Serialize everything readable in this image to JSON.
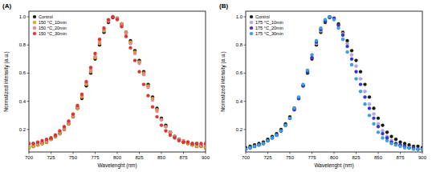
{
  "chart_data": [
    {
      "type": "scatter",
      "title": "(A)",
      "x_label": "Wavelenght (nm)",
      "y_label": "Normalized intensity (a.u.)",
      "x": [
        700,
        705,
        710,
        715,
        720,
        725,
        730,
        735,
        740,
        745,
        750,
        755,
        760,
        765,
        770,
        775,
        780,
        785,
        790,
        795,
        800,
        805,
        810,
        815,
        820,
        825,
        830,
        835,
        840,
        845,
        850,
        855,
        860,
        865,
        870,
        875,
        880,
        885,
        890,
        895,
        900
      ],
      "series": [
        {
          "name": "Control",
          "color": "#1a1a0a",
          "values": [
            0.07,
            0.08,
            0.09,
            0.1,
            0.11,
            0.13,
            0.15,
            0.17,
            0.2,
            0.24,
            0.29,
            0.35,
            0.42,
            0.51,
            0.6,
            0.7,
            0.8,
            0.89,
            0.96,
            0.995,
            0.99,
            0.95,
            0.89,
            0.83,
            0.76,
            0.69,
            0.61,
            0.52,
            0.43,
            0.35,
            0.28,
            0.23,
            0.18,
            0.15,
            0.13,
            0.11,
            0.1,
            0.09,
            0.08,
            0.08,
            0.07
          ]
        },
        {
          "name": "150 °C_10min",
          "color": "#f5a623",
          "values": [
            0.07,
            0.08,
            0.09,
            0.1,
            0.11,
            0.13,
            0.15,
            0.17,
            0.2,
            0.24,
            0.29,
            0.35,
            0.43,
            0.52,
            0.61,
            0.71,
            0.81,
            0.9,
            0.97,
            1.0,
            0.99,
            0.95,
            0.89,
            0.82,
            0.75,
            0.68,
            0.6,
            0.51,
            0.42,
            0.34,
            0.27,
            0.22,
            0.18,
            0.15,
            0.13,
            0.11,
            0.1,
            0.09,
            0.08,
            0.08,
            0.07
          ]
        },
        {
          "name": "150 °C_20min",
          "color": "#f08a8a",
          "values": [
            0.09,
            0.1,
            0.1,
            0.11,
            0.12,
            0.14,
            0.16,
            0.18,
            0.21,
            0.25,
            0.3,
            0.36,
            0.44,
            0.53,
            0.62,
            0.72,
            0.82,
            0.91,
            0.97,
            1.0,
            0.99,
            0.94,
            0.88,
            0.81,
            0.74,
            0.67,
            0.59,
            0.5,
            0.41,
            0.33,
            0.27,
            0.22,
            0.18,
            0.15,
            0.13,
            0.12,
            0.11,
            0.1,
            0.1,
            0.09,
            0.09
          ]
        },
        {
          "name": "150 °C_30min",
          "color": "#e8322e",
          "values": [
            0.1,
            0.1,
            0.11,
            0.12,
            0.13,
            0.14,
            0.16,
            0.19,
            0.22,
            0.26,
            0.31,
            0.37,
            0.45,
            0.54,
            0.64,
            0.74,
            0.84,
            0.92,
            0.98,
            1.0,
            0.98,
            0.93,
            0.86,
            0.78,
            0.69,
            0.61,
            0.52,
            0.44,
            0.36,
            0.29,
            0.23,
            0.19,
            0.16,
            0.14,
            0.12,
            0.11,
            0.11,
            0.1,
            0.1,
            0.1,
            0.1
          ]
        }
      ],
      "xlim": [
        700,
        900
      ],
      "xticks": [
        700,
        725,
        750,
        775,
        800,
        825,
        850,
        875,
        900
      ],
      "ylim": [
        0.04,
        1.04
      ],
      "yticks": [
        0.2,
        0.4,
        0.6,
        0.8,
        {
          "value": 1,
          "label": "1.0"
        }
      ],
      "legend": "upper left",
      "marker": "circle",
      "grid": false
    },
    {
      "type": "scatter",
      "title": "(B)",
      "x_label": "Wavelenght (nm)",
      "y_label": "Normalized intensity (a.u.)",
      "x": [
        700,
        705,
        710,
        715,
        720,
        725,
        730,
        735,
        740,
        745,
        750,
        755,
        760,
        765,
        770,
        775,
        780,
        785,
        790,
        795,
        800,
        805,
        810,
        815,
        820,
        825,
        830,
        835,
        840,
        845,
        850,
        855,
        860,
        865,
        870,
        875,
        880,
        885,
        890,
        895,
        900
      ],
      "series": [
        {
          "name": "Control",
          "color": "#1a1a0a",
          "values": [
            0.07,
            0.08,
            0.09,
            0.1,
            0.11,
            0.13,
            0.15,
            0.17,
            0.2,
            0.24,
            0.29,
            0.35,
            0.42,
            0.51,
            0.6,
            0.7,
            0.8,
            0.89,
            0.96,
            0.995,
            0.99,
            0.95,
            0.89,
            0.83,
            0.76,
            0.69,
            0.61,
            0.52,
            0.43,
            0.35,
            0.28,
            0.23,
            0.18,
            0.15,
            0.13,
            0.11,
            0.1,
            0.09,
            0.08,
            0.08,
            0.07
          ]
        },
        {
          "name": "175 °C_10min",
          "color": "#b3aaf0",
          "values": [
            0.06,
            0.07,
            0.08,
            0.09,
            0.1,
            0.12,
            0.14,
            0.16,
            0.19,
            0.23,
            0.28,
            0.34,
            0.42,
            0.51,
            0.61,
            0.71,
            0.81,
            0.9,
            0.97,
            1.0,
            0.99,
            0.94,
            0.88,
            0.81,
            0.73,
            0.65,
            0.56,
            0.47,
            0.38,
            0.31,
            0.24,
            0.19,
            0.15,
            0.12,
            0.1,
            0.09,
            0.08,
            0.07,
            0.07,
            0.06,
            0.06
          ]
        },
        {
          "name": "175 °C_20min",
          "color": "#3434d8",
          "values": [
            0.06,
            0.07,
            0.08,
            0.09,
            0.1,
            0.12,
            0.14,
            0.16,
            0.19,
            0.23,
            0.28,
            0.34,
            0.42,
            0.51,
            0.61,
            0.71,
            0.82,
            0.91,
            0.97,
            1.0,
            0.99,
            0.94,
            0.87,
            0.79,
            0.7,
            0.61,
            0.52,
            0.43,
            0.35,
            0.28,
            0.22,
            0.17,
            0.14,
            0.11,
            0.1,
            0.09,
            0.08,
            0.07,
            0.07,
            0.06,
            0.06
          ]
        },
        {
          "name": "175 °C_30min",
          "color": "#3aa2ea",
          "values": [
            0.06,
            0.07,
            0.08,
            0.09,
            0.1,
            0.12,
            0.14,
            0.16,
            0.19,
            0.23,
            0.28,
            0.35,
            0.43,
            0.52,
            0.62,
            0.73,
            0.83,
            0.92,
            0.98,
            1.0,
            0.98,
            0.92,
            0.84,
            0.75,
            0.66,
            0.56,
            0.47,
            0.38,
            0.3,
            0.24,
            0.18,
            0.14,
            0.12,
            0.1,
            0.09,
            0.08,
            0.07,
            0.07,
            0.06,
            0.06,
            0.06
          ]
        }
      ],
      "xlim": [
        700,
        900
      ],
      "xticks": [
        700,
        725,
        750,
        775,
        800,
        825,
        850,
        875,
        900
      ],
      "ylim": [
        0.04,
        1.04
      ],
      "yticks": [
        0.2,
        0.4,
        0.6,
        0.8,
        {
          "value": 1,
          "label": "1.0"
        }
      ],
      "legend": "upper left",
      "marker": "circle",
      "grid": false
    }
  ]
}
